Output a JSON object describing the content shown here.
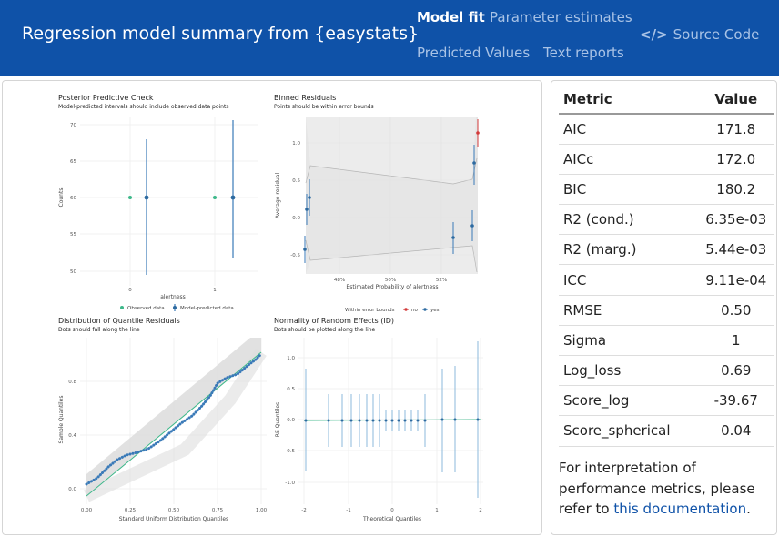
{
  "navbar": {
    "title": "Regression model summary from {easystats}",
    "tabs": [
      "Model fit",
      "Parameter estimates",
      "Predicted Values",
      "Text reports"
    ],
    "active_tab": "Model fit",
    "source_code_label": "Source Code",
    "bg_color": "#0f52a8"
  },
  "plots": {
    "ppc": {
      "title": "Posterior Predictive Check",
      "subtitle": "Model-predicted intervals should include observed data points",
      "ylabel": "Counts",
      "xlabel": "alertness",
      "yticks": [
        "70",
        "65",
        "60",
        "55",
        "50"
      ],
      "xticks": [
        "0",
        "1"
      ],
      "legend": [
        "Observed data",
        "Model-predicted data"
      ]
    },
    "binned": {
      "title": "Binned Residuals",
      "subtitle": "Points should be within error bounds",
      "ylabel": "Average residual",
      "xlabel": "Estimated Probability of alertness",
      "yticks": [
        "1.0",
        "0.5",
        "0.0",
        "-0.5"
      ],
      "xticks": [
        "48%",
        "50%",
        "52%"
      ],
      "legend_title": "Within error bounds",
      "legend": [
        "no",
        "yes"
      ]
    },
    "quantile": {
      "title": "Distribution of Quantile Residuals",
      "subtitle": "Dots should fall along the line",
      "ylabel": "Sample Quantiles",
      "xlabel": "Standard Uniform Distribution Quantiles",
      "yticks": [
        "0.8",
        "0.4",
        "0.0"
      ],
      "xticks": [
        "0.00",
        "0.25",
        "0.50",
        "0.75",
        "1.00"
      ]
    },
    "normality": {
      "title": "Normality of Random Effects (ID)",
      "subtitle": "Dots should be plotted along the line",
      "ylabel": "RE Quantiles",
      "xlabel": "Theoretical Quantiles",
      "yticks": [
        "1.0",
        "0.5",
        "0.0",
        "-0.5",
        "-1.0"
      ],
      "xticks": [
        "-2",
        "-1",
        "0",
        "1",
        "2"
      ]
    }
  },
  "metrics": {
    "header_metric": "Metric",
    "header_value": "Value",
    "rows": [
      {
        "metric": "AIC",
        "value": "171.8"
      },
      {
        "metric": "AICc",
        "value": "172.0"
      },
      {
        "metric": "BIC",
        "value": "180.2"
      },
      {
        "metric": "R2 (cond.)",
        "value": "6.35e-03"
      },
      {
        "metric": "R2 (marg.)",
        "value": "5.44e-03"
      },
      {
        "metric": "ICC",
        "value": "9.11e-04"
      },
      {
        "metric": "RMSE",
        "value": "0.50"
      },
      {
        "metric": "Sigma",
        "value": "1"
      },
      {
        "metric": "Log_loss",
        "value": "0.69"
      },
      {
        "metric": "Score_log",
        "value": "-39.67"
      },
      {
        "metric": "Score_spherical",
        "value": "0.04"
      }
    ]
  },
  "note": {
    "text": "For interpretation of performance metrics, please refer to",
    "link": "this documentation",
    "end": "."
  }
}
